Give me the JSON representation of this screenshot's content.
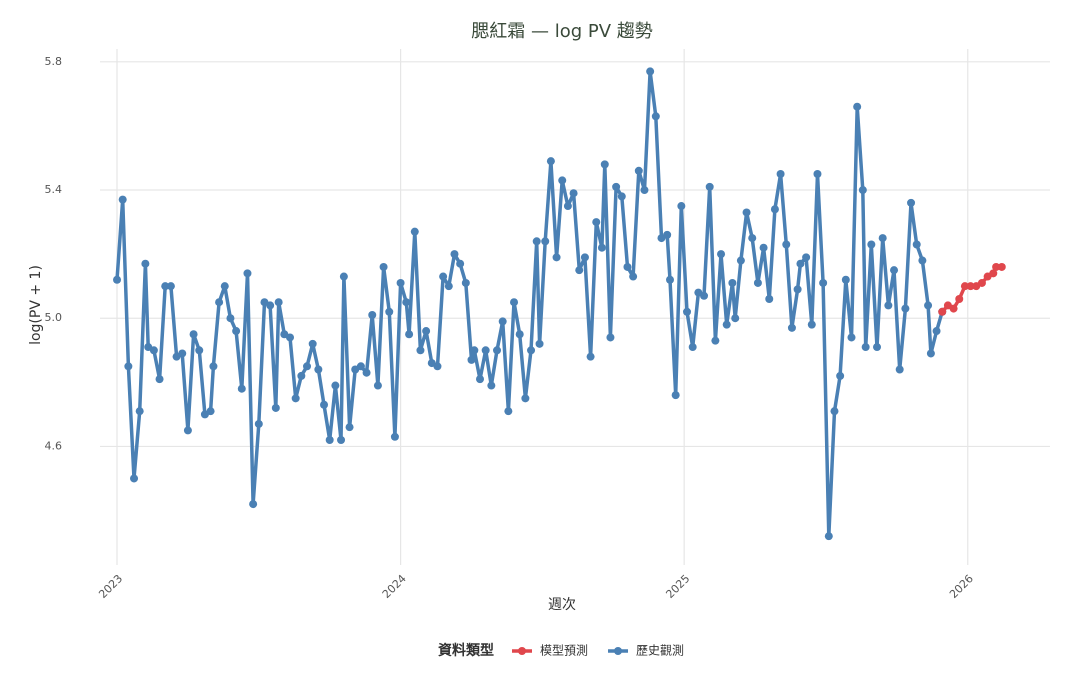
{
  "chart_data": {
    "type": "line",
    "title": "腮紅霜 — log PV 趨勢",
    "x_label": "週次",
    "y_label": "log(PV + 1)",
    "legend_title": "資料類型",
    "xlim": [
      2022.94,
      2026.29
    ],
    "xticks": [
      2023,
      2024,
      2025,
      2026
    ],
    "ylim": [
      4.23,
      5.84
    ],
    "yticks": [
      4.6,
      {
        "value": 5,
        "label": "5.0"
      },
      5.4,
      5.8
    ],
    "grid": true,
    "legend": "bottom",
    "series": [
      {
        "name": "模型預測",
        "color": "#e0474c",
        "x": [
          2025.91,
          2025.93,
          2025.95,
          2025.97,
          2025.99,
          2026.01,
          2026.03,
          2026.05,
          2026.07,
          2026.09,
          2026.1,
          2026.12
        ],
        "values": [
          5.02,
          5.04,
          5.03,
          5.06,
          5.1,
          5.1,
          5.1,
          5.11,
          5.13,
          5.14,
          5.16,
          5.16
        ]
      },
      {
        "name": "歷史觀測",
        "color": "#4a80b4",
        "x": [
          2023.0,
          2023.02,
          2023.04,
          2023.06,
          2023.08,
          2023.1,
          2023.11,
          2023.13,
          2023.15,
          2023.17,
          2023.19,
          2023.21,
          2023.23,
          2023.25,
          2023.27,
          2023.29,
          2023.31,
          2023.33,
          2023.34,
          2023.36,
          2023.38,
          2023.4,
          2023.42,
          2023.44,
          2023.46,
          2023.48,
          2023.5,
          2023.52,
          2023.54,
          2023.56,
          2023.57,
          2023.59,
          2023.61,
          2023.63,
          2023.65,
          2023.67,
          2023.69,
          2023.71,
          2023.73,
          2023.75,
          2023.77,
          2023.79,
          2023.8,
          2023.82,
          2023.84,
          2023.86,
          2023.88,
          2023.9,
          2023.92,
          2023.94,
          2023.96,
          2023.98,
          2024.0,
          2024.02,
          2024.03,
          2024.05,
          2024.07,
          2024.09,
          2024.11,
          2024.13,
          2024.15,
          2024.17,
          2024.19,
          2024.21,
          2024.23,
          2024.25,
          2024.26,
          2024.28,
          2024.3,
          2024.32,
          2024.34,
          2024.36,
          2024.38,
          2024.4,
          2024.42,
          2024.44,
          2024.46,
          2024.48,
          2024.49,
          2024.51,
          2024.53,
          2024.55,
          2024.57,
          2024.59,
          2024.61,
          2024.63,
          2024.65,
          2024.67,
          2024.69,
          2024.71,
          2024.72,
          2024.74,
          2024.76,
          2024.78,
          2024.8,
          2024.82,
          2024.84,
          2024.86,
          2024.88,
          2024.9,
          2024.92,
          2024.94,
          2024.95,
          2024.97,
          2024.99,
          2025.01,
          2025.03,
          2025.05,
          2025.07,
          2025.09,
          2025.11,
          2025.13,
          2025.15,
          2025.17,
          2025.18,
          2025.2,
          2025.22,
          2025.24,
          2025.26,
          2025.28,
          2025.3,
          2025.32,
          2025.34,
          2025.36,
          2025.38,
          2025.4,
          2025.41,
          2025.43,
          2025.45,
          2025.47,
          2025.49,
          2025.51,
          2025.53,
          2025.55,
          2025.57,
          2025.59,
          2025.61,
          2025.63,
          2025.64,
          2025.66,
          2025.68,
          2025.7,
          2025.72,
          2025.74,
          2025.76,
          2025.78,
          2025.8,
          2025.82,
          2025.84,
          2025.86,
          2025.87,
          2025.89,
          2025.91
        ],
        "values": [
          5.12,
          5.37,
          4.85,
          4.5,
          4.71,
          5.17,
          4.91,
          4.9,
          4.81,
          5.1,
          5.1,
          4.88,
          4.89,
          4.65,
          4.95,
          4.9,
          4.7,
          4.71,
          4.85,
          5.05,
          5.1,
          5.0,
          4.96,
          4.78,
          5.14,
          4.42,
          4.67,
          5.05,
          5.04,
          4.72,
          5.05,
          4.95,
          4.94,
          4.75,
          4.82,
          4.85,
          4.92,
          4.84,
          4.73,
          4.62,
          4.79,
          4.62,
          5.13,
          4.66,
          4.84,
          4.85,
          4.83,
          5.01,
          4.79,
          5.16,
          5.02,
          4.63,
          5.11,
          5.05,
          4.95,
          5.27,
          4.9,
          4.96,
          4.86,
          4.85,
          5.13,
          5.1,
          5.2,
          5.17,
          5.11,
          4.87,
          4.9,
          4.81,
          4.9,
          4.79,
          4.9,
          4.99,
          4.71,
          5.05,
          4.95,
          4.75,
          4.9,
          5.24,
          4.92,
          5.24,
          5.49,
          5.19,
          5.43,
          5.35,
          5.39,
          5.15,
          5.19,
          4.88,
          5.3,
          5.22,
          5.48,
          4.94,
          5.41,
          5.38,
          5.16,
          5.13,
          5.46,
          5.4,
          5.77,
          5.63,
          5.25,
          5.26,
          5.12,
          4.76,
          5.35,
          5.02,
          4.91,
          5.08,
          5.07,
          5.41,
          4.93,
          5.2,
          4.98,
          5.11,
          5.0,
          5.18,
          5.33,
          5.25,
          5.11,
          5.22,
          5.06,
          5.34,
          5.45,
          5.23,
          4.97,
          5.09,
          5.17,
          5.19,
          4.98,
          5.45,
          5.11,
          4.32,
          4.71,
          4.82,
          5.12,
          4.94,
          5.66,
          5.4,
          4.91,
          5.23,
          4.91,
          5.25,
          5.04,
          5.15,
          4.84,
          5.03,
          5.36,
          5.23,
          5.18,
          5.04,
          4.89,
          4.96,
          5.02
        ]
      }
    ]
  }
}
